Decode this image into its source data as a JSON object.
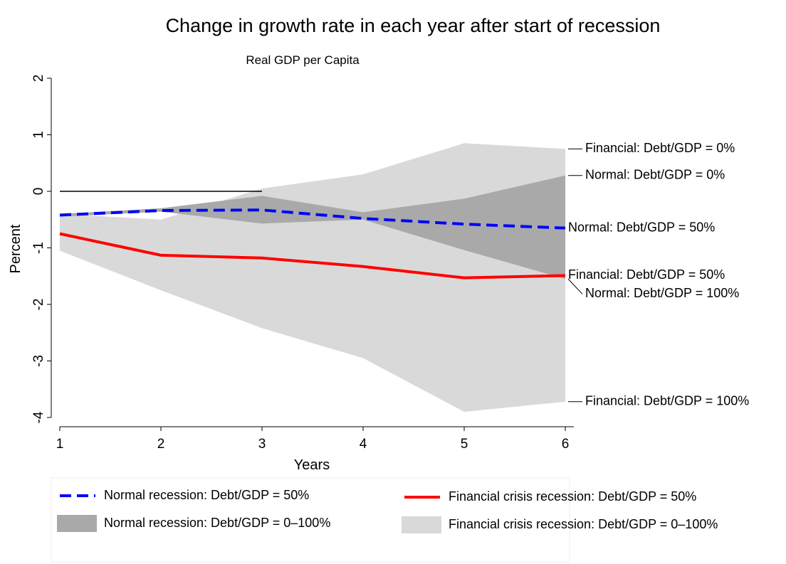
{
  "chart_data": {
    "type": "line",
    "title": "Change in growth rate in each year after start of recession",
    "subtitle": "Real GDP per Capita",
    "x_label": "Years",
    "y_label": "Percent",
    "x": [
      1,
      2,
      3,
      4,
      5,
      6
    ],
    "xlim": [
      1,
      6
    ],
    "xticks": [
      1,
      2,
      3,
      4,
      5,
      6
    ],
    "ylim": [
      -4,
      2
    ],
    "yticks": [
      -4,
      -3,
      -2,
      -1,
      0,
      1,
      2
    ],
    "reference_line": {
      "y": 0,
      "x": [
        1,
        3
      ]
    },
    "bands": [
      {
        "name": "Financial crisis recession: Debt/GDP = 0–100%",
        "color": "#d9d9d9",
        "upper": [
          -0.4,
          -0.5,
          0.05,
          0.3,
          0.85,
          0.75
        ],
        "lower": [
          -1.05,
          -1.75,
          -2.42,
          -2.95,
          -3.9,
          -3.72
        ],
        "upper_label": "Financial: Debt/GDP = 0%",
        "lower_label": "Financial: Debt/GDP = 100%"
      },
      {
        "name": "Normal recession: Debt/GDP = 0–100%",
        "color": "#a9a9a9",
        "upper": [
          -0.4,
          -0.3,
          -0.08,
          -0.37,
          -0.13,
          0.28
        ],
        "lower": [
          -0.45,
          -0.36,
          -0.57,
          -0.5,
          -1.04,
          -1.55
        ],
        "upper_label": "Normal: Debt/GDP = 0%",
        "lower_label": "Normal: Debt/GDP = 100%"
      }
    ],
    "series": [
      {
        "name": "Financial crisis recession: Debt/GDP = 50%",
        "color": "#ff0000",
        "dashed": false,
        "values": [
          -0.75,
          -1.13,
          -1.18,
          -1.33,
          -1.53,
          -1.49
        ],
        "end_label": "Financial: Debt/GDP = 50%"
      },
      {
        "name": "Normal recession: Debt/GDP = 50%",
        "color": "#0000ff",
        "dashed": true,
        "values": [
          -0.42,
          -0.34,
          -0.33,
          -0.48,
          -0.58,
          -0.65
        ],
        "end_label": "Normal: Debt/GDP = 50%"
      }
    ]
  }
}
